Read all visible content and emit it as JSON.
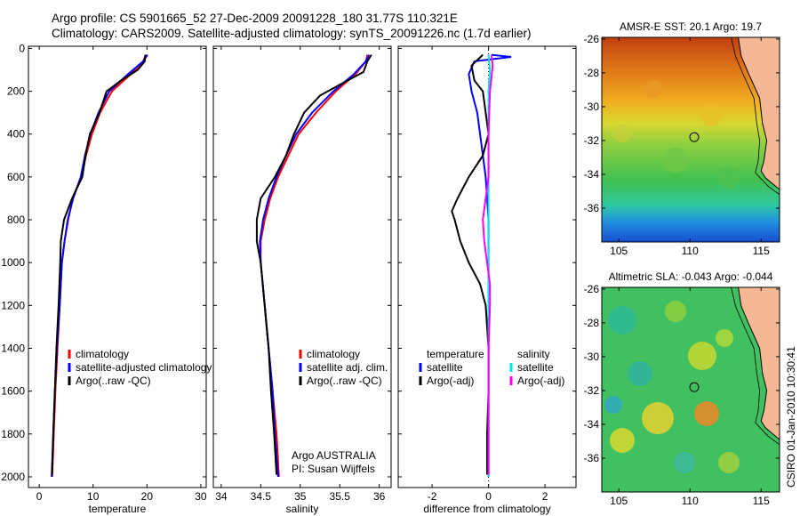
{
  "header": {
    "line1": "Argo profile: CS 5901665_52 27-Dec-2009 20091228_180 31.77S 110.321E",
    "line2": "Climatology: CARS2009. Satellite-adjusted climatology: synTS_20091226.nc (1.7d earlier)"
  },
  "side_stamp": "CSIRO 01-Jan-2010 10:30:41",
  "maps": [
    {
      "title": "AMSR-E SST: 20.1 Argo: 19.7",
      "yticks": [
        "-26",
        "-28",
        "-30",
        "-32",
        "-34",
        "-36"
      ],
      "xticks": [
        "105",
        "110",
        "115"
      ],
      "float_lon": 110.3,
      "float_lat": -31.8
    },
    {
      "title": "Altimetric SLA: -0.043 Argo: -0.044",
      "yticks": [
        "-26",
        "-28",
        "-30",
        "-32",
        "-34",
        "-36"
      ],
      "xticks": [
        "105",
        "110",
        "115"
      ],
      "float_lon": 110.3,
      "float_lat": -31.8
    }
  ],
  "colors": {
    "climatology": "#ff0000",
    "satellite": "#0000ff",
    "argo": "#000000",
    "satellite_diff": "#00e5e5",
    "argo_sal_diff": "#ff00ff"
  },
  "chart_data": [
    {
      "type": "line",
      "xlabel": "temperature",
      "ylabel": "",
      "xlim": [
        -2,
        31
      ],
      "ylim": [
        2050,
        -10
      ],
      "xticks": [
        "0",
        "10",
        "20",
        "30"
      ],
      "yticks": [
        "0",
        "200",
        "400",
        "600",
        "800",
        "1000",
        "1200",
        "1400",
        "1600",
        "1800",
        "2000"
      ],
      "legend": [
        "climatology",
        "satellite-adjusted climatology",
        "Argo(..raw -QC)"
      ],
      "series": [
        {
          "name": "climatology",
          "color": "red",
          "points": [
            [
              19.8,
              30
            ],
            [
              19.3,
              60
            ],
            [
              17,
              120
            ],
            [
              13.5,
              200
            ],
            [
              11.3,
              300
            ],
            [
              9.8,
              400
            ],
            [
              8.7,
              500
            ],
            [
              7.8,
              600
            ],
            [
              6.2,
              700
            ],
            [
              5.4,
              800
            ],
            [
              4.7,
              900
            ],
            [
              4.2,
              1000
            ],
            [
              3.8,
              1200
            ],
            [
              3.4,
              1400
            ],
            [
              3,
              1600
            ],
            [
              2.7,
              1800
            ],
            [
              2.4,
              2000
            ]
          ]
        },
        {
          "name": "satellite-adjusted climatology",
          "color": "blue",
          "points": [
            [
              20.1,
              30
            ],
            [
              19.3,
              60
            ],
            [
              16.5,
              120
            ],
            [
              13,
              200
            ],
            [
              11,
              300
            ],
            [
              9.5,
              400
            ],
            [
              8.5,
              500
            ],
            [
              7.7,
              600
            ],
            [
              6.3,
              700
            ],
            [
              5.3,
              800
            ],
            [
              4.7,
              900
            ],
            [
              4.2,
              1000
            ],
            [
              3.8,
              1200
            ],
            [
              3.3,
              1400
            ],
            [
              2.9,
              1600
            ],
            [
              2.6,
              1800
            ],
            [
              2.3,
              2000
            ]
          ]
        },
        {
          "name": "Argo(..raw -QC)",
          "color": "black",
          "points": [
            [
              19.7,
              30
            ],
            [
              19.6,
              60
            ],
            [
              18.3,
              100
            ],
            [
              15.2,
              150
            ],
            [
              12.5,
              200
            ],
            [
              11.2,
              300
            ],
            [
              9.4,
              400
            ],
            [
              8.6,
              500
            ],
            [
              8,
              600
            ],
            [
              6.1,
              700
            ],
            [
              4.6,
              800
            ],
            [
              4,
              900
            ],
            [
              3.9,
              1000
            ],
            [
              3.6,
              1200
            ],
            [
              3.2,
              1400
            ],
            [
              2.9,
              1600
            ],
            [
              2.6,
              1800
            ],
            [
              2.4,
              1990
            ]
          ]
        }
      ]
    },
    {
      "type": "line",
      "xlabel": "salinity",
      "ylabel": "",
      "xlim": [
        33.9,
        36.15
      ],
      "ylim": [
        2050,
        -10
      ],
      "xticks": [
        "34",
        "34.5",
        "35",
        "35.5",
        "36"
      ],
      "legend": [
        "climatology",
        "satellite adj. clim.",
        "Argo(..raw -QC)"
      ],
      "annotation": [
        "Argo AUSTRALIA",
        "PI: Susan Wijffels"
      ],
      "series": [
        {
          "name": "climatology",
          "color": "red",
          "points": [
            [
              35.85,
              30
            ],
            [
              35.83,
              60
            ],
            [
              35.7,
              120
            ],
            [
              35.45,
              200
            ],
            [
              35.2,
              300
            ],
            [
              34.98,
              400
            ],
            [
              34.85,
              500
            ],
            [
              34.72,
              600
            ],
            [
              34.62,
              700
            ],
            [
              34.55,
              800
            ],
            [
              34.5,
              900
            ],
            [
              34.5,
              1000
            ],
            [
              34.55,
              1200
            ],
            [
              34.6,
              1400
            ],
            [
              34.65,
              1600
            ],
            [
              34.7,
              1800
            ],
            [
              34.73,
              2000
            ]
          ]
        },
        {
          "name": "satellite adj. clim.",
          "color": "blue",
          "points": [
            [
              35.87,
              30
            ],
            [
              35.83,
              60
            ],
            [
              35.68,
              120
            ],
            [
              35.42,
              200
            ],
            [
              35.15,
              300
            ],
            [
              34.95,
              400
            ],
            [
              34.82,
              500
            ],
            [
              34.7,
              600
            ],
            [
              34.6,
              700
            ],
            [
              34.53,
              800
            ],
            [
              34.49,
              900
            ],
            [
              34.5,
              1000
            ],
            [
              34.55,
              1200
            ],
            [
              34.6,
              1400
            ],
            [
              34.65,
              1600
            ],
            [
              34.68,
              1800
            ],
            [
              34.72,
              2000
            ]
          ]
        },
        {
          "name": "Argo(..raw -QC)",
          "color": "black",
          "points": [
            [
              35.9,
              30
            ],
            [
              35.85,
              60
            ],
            [
              35.8,
              110
            ],
            [
              35.5,
              170
            ],
            [
              35.25,
              220
            ],
            [
              35.05,
              300
            ],
            [
              34.92,
              400
            ],
            [
              34.82,
              500
            ],
            [
              34.68,
              600
            ],
            [
              34.5,
              700
            ],
            [
              34.45,
              800
            ],
            [
              34.45,
              900
            ],
            [
              34.5,
              1000
            ],
            [
              34.55,
              1200
            ],
            [
              34.6,
              1400
            ],
            [
              34.63,
              1600
            ],
            [
              34.67,
              1800
            ],
            [
              34.7,
              1990
            ]
          ]
        }
      ]
    },
    {
      "type": "line",
      "xlabel": "difference from climatology",
      "ylabel": "",
      "xlim": [
        -3.2,
        3.1
      ],
      "ylim": [
        2050,
        -10
      ],
      "xticks": [
        "-2",
        "0",
        "2"
      ],
      "legend_left": [
        "temperature",
        "satellite",
        "Argo(-adj)"
      ],
      "legend_right": [
        "salinity",
        "satellite",
        "Argo(-adj)"
      ],
      "series": [
        {
          "name": "satellite",
          "color": "blue",
          "points": [
            [
              0.1,
              30
            ],
            [
              0.8,
              40
            ],
            [
              -0.5,
              60
            ],
            [
              -0.7,
              120
            ],
            [
              -0.6,
              200
            ],
            [
              -0.4,
              300
            ],
            [
              -0.3,
              400
            ],
            [
              -0.2,
              500
            ],
            [
              -0.1,
              600
            ],
            [
              0,
              800
            ],
            [
              0,
              1000
            ],
            [
              0,
              1200
            ],
            [
              0,
              1400
            ],
            [
              0,
              1600
            ],
            [
              0,
              1800
            ],
            [
              0,
              2000
            ]
          ]
        },
        {
          "name": "Argo(-adj)",
          "color": "black",
          "points": [
            [
              -0.2,
              30
            ],
            [
              -0.6,
              80
            ],
            [
              -0.5,
              150
            ],
            [
              -0.2,
              200
            ],
            [
              -0.1,
              300
            ],
            [
              0,
              400
            ],
            [
              -0.2,
              500
            ],
            [
              -0.7,
              600
            ],
            [
              -1.1,
              700
            ],
            [
              -1.3,
              760
            ],
            [
              -1.2,
              800
            ],
            [
              -1,
              900
            ],
            [
              -0.7,
              1000
            ],
            [
              -0.3,
              1100
            ],
            [
              -0.1,
              1200
            ],
            [
              0,
              1400
            ],
            [
              0,
              1600
            ],
            [
              -0.05,
              1800
            ],
            [
              -0.05,
              1990
            ]
          ]
        },
        {
          "name": "satellite",
          "color": "cyan",
          "points": [
            [
              0,
              30
            ],
            [
              0.05,
              100
            ],
            [
              0,
              200
            ],
            [
              0,
              400
            ],
            [
              0,
              600
            ],
            [
              0,
              800
            ],
            [
              0,
              1000
            ],
            [
              0,
              1200
            ],
            [
              0,
              1400
            ],
            [
              0,
              1600
            ],
            [
              0,
              1800
            ],
            [
              0,
              2000
            ]
          ]
        },
        {
          "name": "Argo(-adj)",
          "color": "magenta",
          "points": [
            [
              0.1,
              30
            ],
            [
              0.15,
              80
            ],
            [
              0.05,
              200
            ],
            [
              0,
              400
            ],
            [
              0,
              600
            ],
            [
              -0.1,
              700
            ],
            [
              -0.2,
              800
            ],
            [
              -0.15,
              900
            ],
            [
              -0.05,
              1000
            ],
            [
              0.05,
              1100
            ],
            [
              0.05,
              1200
            ],
            [
              0,
              1400
            ],
            [
              0,
              1600
            ],
            [
              0,
              1800
            ],
            [
              0,
              1990
            ]
          ]
        }
      ]
    }
  ]
}
